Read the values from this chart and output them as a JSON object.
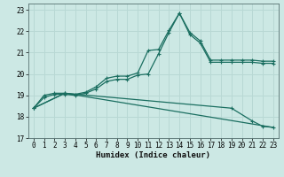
{
  "xlabel": "Humidex (Indice chaleur)",
  "background_color": "#cce8e4",
  "grid_color": "#b8d8d4",
  "line_color": "#1a6e60",
  "xlim": [
    -0.5,
    23.5
  ],
  "ylim": [
    17,
    23.3
  ],
  "xticks": [
    0,
    1,
    2,
    3,
    4,
    5,
    6,
    7,
    8,
    9,
    10,
    11,
    12,
    13,
    14,
    15,
    16,
    17,
    18,
    19,
    20,
    21,
    22,
    23
  ],
  "yticks": [
    17,
    18,
    19,
    20,
    21,
    22,
    23
  ],
  "line1_x": [
    0,
    1,
    2,
    3,
    4,
    5,
    6,
    7,
    8,
    9,
    10,
    11,
    12,
    13,
    14,
    15,
    16,
    17,
    18,
    19,
    20,
    21,
    22,
    23
  ],
  "line1_y": [
    18.4,
    19.0,
    19.1,
    19.1,
    19.05,
    19.15,
    19.4,
    19.8,
    19.9,
    19.9,
    20.05,
    21.1,
    21.15,
    22.05,
    22.85,
    21.95,
    21.55,
    20.65,
    20.65,
    20.65,
    20.65,
    20.65,
    20.6,
    20.6
  ],
  "line2_x": [
    0,
    1,
    2,
    3,
    4,
    5,
    6,
    7,
    8,
    9,
    10,
    11,
    12,
    13,
    14,
    15,
    16,
    17,
    18,
    19,
    20,
    21,
    22,
    23
  ],
  "line2_y": [
    18.4,
    18.9,
    19.05,
    19.05,
    19.0,
    19.1,
    19.3,
    19.65,
    19.75,
    19.75,
    19.95,
    20.0,
    20.95,
    21.95,
    22.85,
    21.85,
    21.45,
    20.55,
    20.55,
    20.55,
    20.55,
    20.55,
    20.5,
    20.5
  ],
  "line3_x": [
    0,
    3,
    19,
    21,
    22,
    23
  ],
  "line3_y": [
    18.4,
    19.1,
    18.4,
    17.8,
    17.55,
    17.5
  ],
  "line4_x": [
    0,
    3,
    23
  ],
  "line4_y": [
    18.4,
    19.1,
    17.5
  ]
}
